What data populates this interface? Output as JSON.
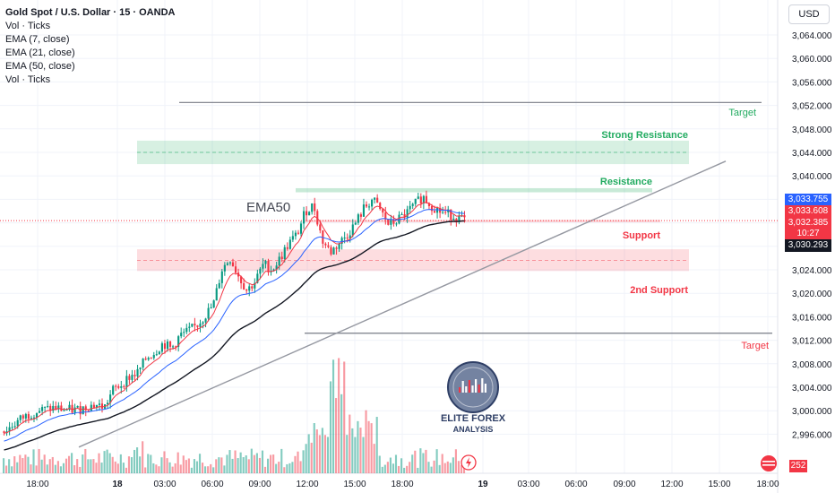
{
  "legend": {
    "title": "Gold Spot / U.S. Dollar · 15 · OANDA",
    "lines": [
      "Vol · Ticks",
      "EMA (7, close)",
      "EMA (21, close)",
      "EMA (50, close)",
      "Vol · Ticks"
    ]
  },
  "currency_button": "USD",
  "price_tags": [
    {
      "label": "3,033.755",
      "color": "#2962ff"
    },
    {
      "label": "3,033.608",
      "color": "#f23645"
    },
    {
      "label": "3,032.385",
      "color": "#f23645"
    },
    {
      "label": "10:27",
      "color": "#f23645"
    },
    {
      "label": "3,030.293",
      "color": "#131722"
    }
  ],
  "volume_badge": "252",
  "logo": {
    "line1": "ELITE FOREX",
    "line2": "ANALYSIS"
  },
  "colors": {
    "up": "#089981",
    "down": "#f23645",
    "ema7": "#f23645",
    "ema21": "#2962ff",
    "ema50": "#131722",
    "support": "#f23645",
    "resistance": "#22ab60"
  },
  "chart_data": {
    "type": "candlestick",
    "symbol": "Gold Spot / U.S. Dollar",
    "interval": "15",
    "exchange": "OANDA",
    "ylim": [
      2992,
      3068
    ],
    "y_ticks": [
      "3,064.000",
      "3,060.000",
      "3,056.000",
      "3,052.000",
      "3,048.000",
      "3,044.000",
      "3,040.000",
      "3,036.000",
      "3,024.000",
      "3,020.000",
      "3,016.000",
      "3,012.000",
      "3,008.000",
      "3,004.000",
      "3,000.000",
      "2,996.000"
    ],
    "x_ticks": [
      "18:00",
      "18",
      "03:00",
      "06:00",
      "09:00",
      "12:00",
      "15:00",
      "18:00",
      "19",
      "03:00",
      "06:00",
      "09:00",
      "12:00",
      "15:00",
      "18:00"
    ],
    "close_path": [
      2996.5,
      2997.5,
      2998.6,
      2999.4,
      3000.0,
      3000.2,
      3000.5,
      3000.2,
      3000.1,
      3000.2,
      3000.8,
      3001.0,
      3000.6,
      3003.5,
      3004.5,
      3005.8,
      3006.5,
      3009.0,
      3010.0,
      3011.5,
      3010.5,
      3012.8,
      3013.5,
      3014.5,
      3016.2,
      3018.0,
      3024.0,
      3026.0,
      3023.0,
      3020.5,
      3022.0,
      3025.0,
      3024.0,
      3026.0,
      3028.5,
      3030.0,
      3034.0,
      3035.0,
      3029.0,
      3027.0,
      3028.5,
      3030.0,
      3032.0,
      3034.5,
      3036.0,
      3034.0,
      3031.5,
      3032.5,
      3033.5,
      3035.0,
      3036.5,
      3035.0,
      3034.0,
      3033.5,
      3033.0,
      3032.4
    ],
    "annotations": [
      {
        "type": "text",
        "label": "EMA50"
      },
      {
        "type": "zone",
        "label": "Strong Resistance"
      },
      {
        "type": "zone",
        "label": "Resistance"
      },
      {
        "type": "zone",
        "label": "Support"
      },
      {
        "type": "zone",
        "label": "2nd Support"
      },
      {
        "type": "line",
        "label": "Target"
      },
      {
        "type": "line",
        "label": "Target"
      }
    ],
    "last_price": 3032.385,
    "ema7_last": 3033.608,
    "ema21_last": 3033.755,
    "ema50_last": 3030.293
  }
}
